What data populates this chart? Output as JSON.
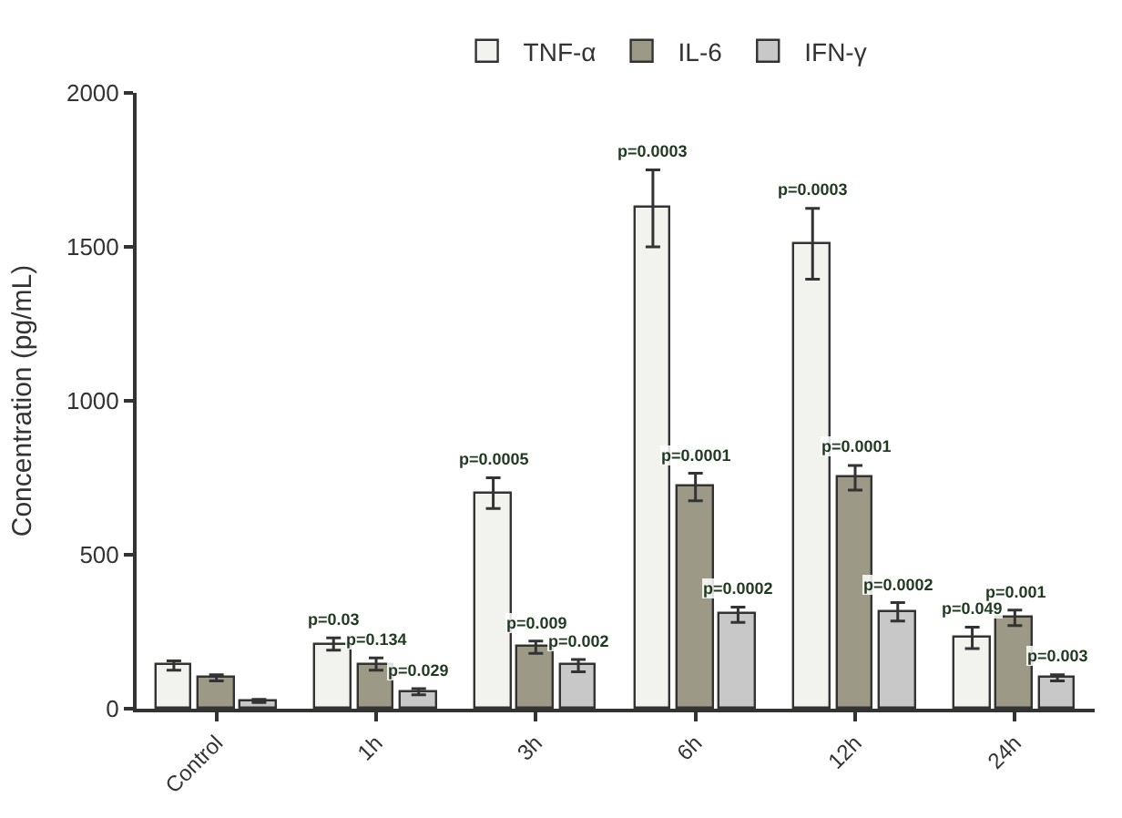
{
  "chart_data": {
    "type": "bar",
    "ylabel": "Concentration (pg/mL)",
    "categories": [
      "Control",
      "1h",
      "3h",
      "6h",
      "12h",
      "24h"
    ],
    "series": [
      {
        "name": "TNF-α",
        "color": "#f2f2ee",
        "values": [
          140,
          210,
          700,
          1625,
          1510,
          230
        ],
        "errors": [
          15,
          20,
          50,
          125,
          115,
          35
        ]
      },
      {
        "name": "IL-6",
        "color": "#9c9a86",
        "values": [
          100,
          145,
          200,
          720,
          750,
          295
        ],
        "errors": [
          10,
          20,
          20,
          45,
          40,
          25
        ]
      },
      {
        "name": "IFN-γ",
        "color": "#c8c8c8",
        "values": [
          25,
          55,
          140,
          305,
          315,
          100
        ],
        "errors": [
          5,
          10,
          20,
          25,
          30,
          10
        ]
      }
    ],
    "annotations": [
      "p=0.03",
      "p=0.134",
      "p=0.029",
      "p=0.0005",
      "p=0.009",
      "p=0.002",
      "p=0.0003",
      "p=0.0001",
      "p=0.0002",
      "p=0.0003",
      "p=0.0001",
      "p=0.0002",
      "p=0.049",
      "p=0.001",
      "p=0.003"
    ],
    "ylim": [
      0,
      2000
    ],
    "yticks": [
      0,
      500,
      1000,
      1500,
      2000
    ],
    "grid": false,
    "legend": "top"
  }
}
